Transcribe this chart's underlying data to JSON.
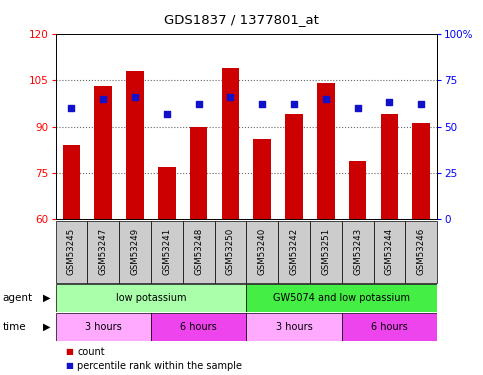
{
  "title": "GDS1837 / 1377801_at",
  "samples": [
    "GSM53245",
    "GSM53247",
    "GSM53249",
    "GSM53241",
    "GSM53248",
    "GSM53250",
    "GSM53240",
    "GSM53242",
    "GSM53251",
    "GSM53243",
    "GSM53244",
    "GSM53246"
  ],
  "counts": [
    84,
    103,
    108,
    77,
    90,
    109,
    86,
    94,
    104,
    79,
    94,
    91
  ],
  "percentiles": [
    60,
    65,
    66,
    57,
    62,
    66,
    62,
    62,
    65,
    60,
    63,
    62
  ],
  "ylim": [
    60,
    120
  ],
  "yticks": [
    60,
    75,
    90,
    105,
    120
  ],
  "ylim_right": [
    0,
    100
  ],
  "yticks_right": [
    0,
    25,
    50,
    75,
    100
  ],
  "bar_color": "#cc0000",
  "dot_color": "#1111cc",
  "bar_width": 0.55,
  "agent_groups": [
    {
      "label": "low potassium",
      "start": 0,
      "end": 6,
      "color": "#aaffaa"
    },
    {
      "label": "GW5074 and low potassium",
      "start": 6,
      "end": 12,
      "color": "#44ee44"
    }
  ],
  "time_groups": [
    {
      "label": "3 hours",
      "start": 0,
      "end": 3,
      "color": "#ffaaff"
    },
    {
      "label": "6 hours",
      "start": 3,
      "end": 6,
      "color": "#ee44ee"
    },
    {
      "label": "3 hours",
      "start": 6,
      "end": 9,
      "color": "#ffaaff"
    },
    {
      "label": "6 hours",
      "start": 9,
      "end": 12,
      "color": "#ee44ee"
    }
  ],
  "xlab_bg": "#cccccc",
  "legend_count_color": "#cc0000",
  "legend_pct_color": "#1111cc",
  "grid_color": "#666666"
}
